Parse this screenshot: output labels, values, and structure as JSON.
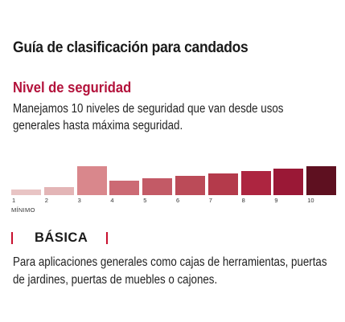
{
  "title": "Guía de clasificación para candados",
  "section": {
    "title": "Nivel de seguridad",
    "description": "Manejamos 10 niveles de seguridad que van desde usos generales hasta máxima seguridad."
  },
  "scale": {
    "levels": [
      {
        "label": "1",
        "height": 1,
        "color": "#e8c4c4"
      },
      {
        "label": "2",
        "height": 1.3,
        "color": "#e3b5b6"
      },
      {
        "label": "3",
        "height": 4.8,
        "color": "#d9878c"
      },
      {
        "label": "4",
        "height": 2.4,
        "color": "#cc6a74"
      },
      {
        "label": "5",
        "height": 2.8,
        "color": "#c35a66"
      },
      {
        "label": "6",
        "height": 3.2,
        "color": "#bb4b58"
      },
      {
        "label": "7",
        "height": 3.6,
        "color": "#b43a4b"
      },
      {
        "label": "8",
        "height": 4.0,
        "color": "#ad2540"
      },
      {
        "label": "9",
        "height": 4.4,
        "color": "#9a1836"
      },
      {
        "label": "10",
        "height": 4.8,
        "color": "#5e1020"
      }
    ],
    "selected_level": 3,
    "min_label": "MÍNIMO"
  },
  "level": {
    "name": "BÁSICA",
    "accent_color": "#c8102e",
    "description": "Para aplicaciones generales como cajas de herramientas, puertas de jardines, puertas de muebles o cajones."
  }
}
